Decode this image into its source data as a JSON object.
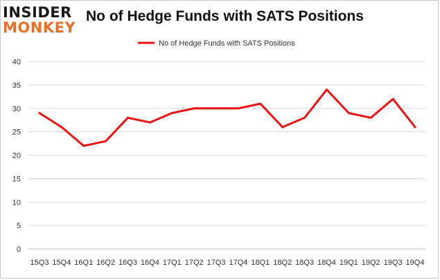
{
  "logo": {
    "line1": "INSIDER",
    "line2": "MONKEY"
  },
  "colors": {
    "series": "#ee1111",
    "logo_accent": "#e8702a",
    "grid": "#d9d9d9"
  },
  "chart_data": {
    "type": "line",
    "title": "No of Hedge Funds with SATS Positions",
    "xlabel": "",
    "ylabel": "",
    "ylim": [
      0,
      40
    ],
    "yticks": [
      0,
      5,
      10,
      15,
      20,
      25,
      30,
      35,
      40
    ],
    "grid": true,
    "legend_position": "top-center",
    "categories": [
      "15Q3",
      "15Q4",
      "16Q1",
      "16Q2",
      "16Q3",
      "16Q4",
      "17Q1",
      "17Q2",
      "17Q3",
      "17Q4",
      "18Q1",
      "18Q2",
      "18Q3",
      "18Q4",
      "19Q1",
      "19Q2",
      "19Q3",
      "19Q4"
    ],
    "series": [
      {
        "name": "No of Hedge Funds with SATS Positions",
        "values": [
          29,
          26,
          22,
          23,
          28,
          27,
          29,
          30,
          30,
          30,
          31,
          26,
          28,
          34,
          29,
          28,
          32,
          26
        ]
      }
    ]
  }
}
